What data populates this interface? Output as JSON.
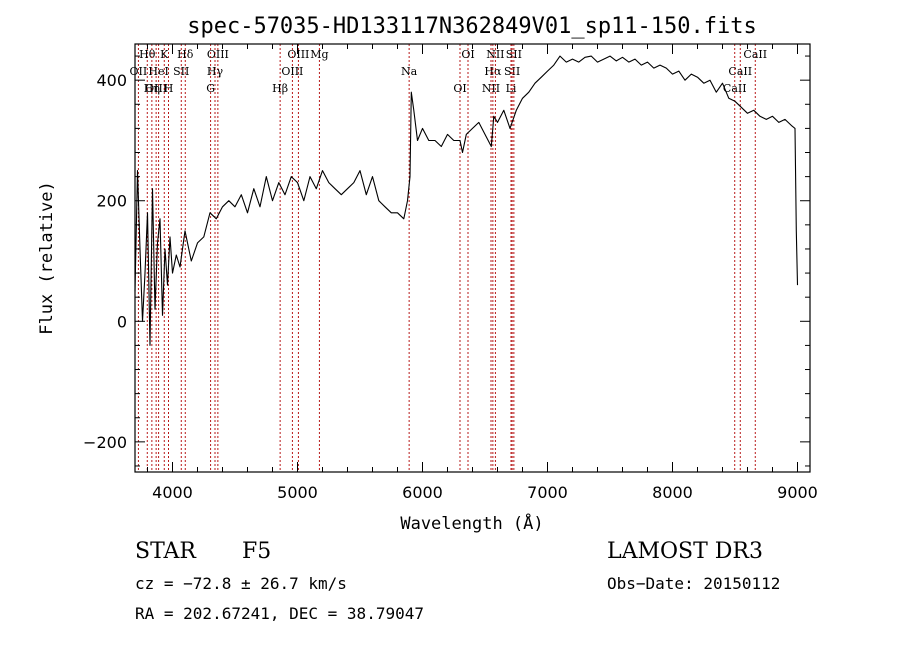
{
  "chart_data": {
    "type": "line",
    "title": "spec-57035-HD133117N362849V01_sp11-150.fits",
    "xlabel": "Wavelength (Å)",
    "ylabel": "Flux (relative)",
    "xlim": [
      3700,
      9100
    ],
    "ylim": [
      -250,
      460
    ],
    "xticks": [
      4000,
      5000,
      6000,
      7000,
      8000,
      9000
    ],
    "xtick_labels": [
      "4000",
      "5000",
      "6000",
      "7000",
      "8000",
      "9000"
    ],
    "yticks": [
      -200,
      0,
      200,
      400
    ],
    "ytick_labels": [
      "−200",
      "0",
      "200",
      "400"
    ],
    "series": [
      {
        "name": "spectrum",
        "x": [
          3700,
          3720,
          3740,
          3760,
          3780,
          3800,
          3820,
          3840,
          3860,
          3880,
          3900,
          3920,
          3940,
          3960,
          3980,
          4000,
          4030,
          4060,
          4100,
          4150,
          4200,
          4250,
          4300,
          4350,
          4400,
          4450,
          4500,
          4550,
          4600,
          4650,
          4700,
          4750,
          4800,
          4850,
          4900,
          4950,
          5000,
          5050,
          5100,
          5150,
          5200,
          5250,
          5300,
          5350,
          5400,
          5450,
          5500,
          5550,
          5600,
          5650,
          5700,
          5750,
          5800,
          5850,
          5880,
          5900,
          5910,
          5930,
          5960,
          6000,
          6050,
          6100,
          6150,
          6200,
          6250,
          6300,
          6320,
          6350,
          6400,
          6450,
          6500,
          6550,
          6570,
          6600,
          6650,
          6700,
          6750,
          6800,
          6850,
          6900,
          6950,
          7000,
          7050,
          7100,
          7150,
          7200,
          7250,
          7300,
          7350,
          7400,
          7450,
          7500,
          7550,
          7600,
          7650,
          7700,
          7750,
          7800,
          7850,
          7900,
          7950,
          8000,
          8050,
          8100,
          8150,
          8200,
          8250,
          8300,
          8350,
          8400,
          8450,
          8500,
          8550,
          8600,
          8650,
          8700,
          8750,
          8800,
          8850,
          8900,
          8950,
          8980,
          8990,
          9000
        ],
        "y": [
          50,
          250,
          120,
          0,
          80,
          180,
          -40,
          220,
          20,
          130,
          170,
          10,
          120,
          60,
          140,
          80,
          110,
          90,
          150,
          100,
          130,
          140,
          180,
          170,
          190,
          200,
          190,
          210,
          180,
          220,
          190,
          240,
          200,
          230,
          210,
          240,
          230,
          200,
          240,
          220,
          250,
          230,
          220,
          210,
          220,
          230,
          250,
          210,
          240,
          200,
          190,
          180,
          180,
          170,
          200,
          240,
          380,
          350,
          300,
          320,
          300,
          300,
          290,
          310,
          300,
          300,
          280,
          310,
          320,
          330,
          310,
          290,
          340,
          330,
          350,
          320,
          350,
          370,
          380,
          395,
          405,
          415,
          425,
          440,
          430,
          435,
          430,
          438,
          440,
          430,
          435,
          440,
          432,
          438,
          430,
          435,
          425,
          430,
          420,
          425,
          420,
          410,
          415,
          400,
          410,
          405,
          395,
          400,
          380,
          395,
          370,
          365,
          355,
          345,
          350,
          340,
          335,
          340,
          330,
          335,
          325,
          320,
          150,
          60
        ]
      }
    ],
    "lines": [
      {
        "name": "Hθ",
        "x": 3798
      },
      {
        "name": "OII",
        "x": 3727
      },
      {
        "name": "OIII",
        "x": 3869
      },
      {
        "name": "K",
        "x": 3934
      },
      {
        "name": "HeI",
        "x": 3889
      },
      {
        "name": "Hη",
        "x": 3835
      },
      {
        "name": "Hδ",
        "x": 4102
      },
      {
        "name": "SII",
        "x": 4070
      },
      {
        "name": "H",
        "x": 3968
      },
      {
        "name": "OIII",
        "x": 4363
      },
      {
        "name": "Hγ",
        "x": 4340
      },
      {
        "name": "G",
        "x": 4305
      },
      {
        "name": "OIII",
        "x": 5007
      },
      {
        "name": "OIII",
        "x": 4959
      },
      {
        "name": "Hβ",
        "x": 4861
      },
      {
        "name": "Mg",
        "x": 5175
      },
      {
        "name": "Na",
        "x": 5893
      },
      {
        "name": "OI",
        "x": 6300
      },
      {
        "name": "OI",
        "x": 6364
      },
      {
        "name": "Hα",
        "x": 6563
      },
      {
        "name": "NII",
        "x": 6548
      },
      {
        "name": "NII",
        "x": 6583
      },
      {
        "name": "SII",
        "x": 6717
      },
      {
        "name": "Li",
        "x": 6708
      },
      {
        "name": "SII",
        "x": 6731
      },
      {
        "name": "CaII",
        "x": 8542
      },
      {
        "name": "CaII",
        "x": 8498
      },
      {
        "name": "CaII",
        "x": 8662
      }
    ]
  },
  "info": {
    "object_class": "STAR",
    "subclass": "F5",
    "survey": "LAMOST DR3",
    "velocity": "cz = −72.8 ± 26.7 km/s",
    "obs_date": "Obs−Date: 20150112",
    "coordinates": "RA = 202.67241, DEC =  38.79047"
  }
}
